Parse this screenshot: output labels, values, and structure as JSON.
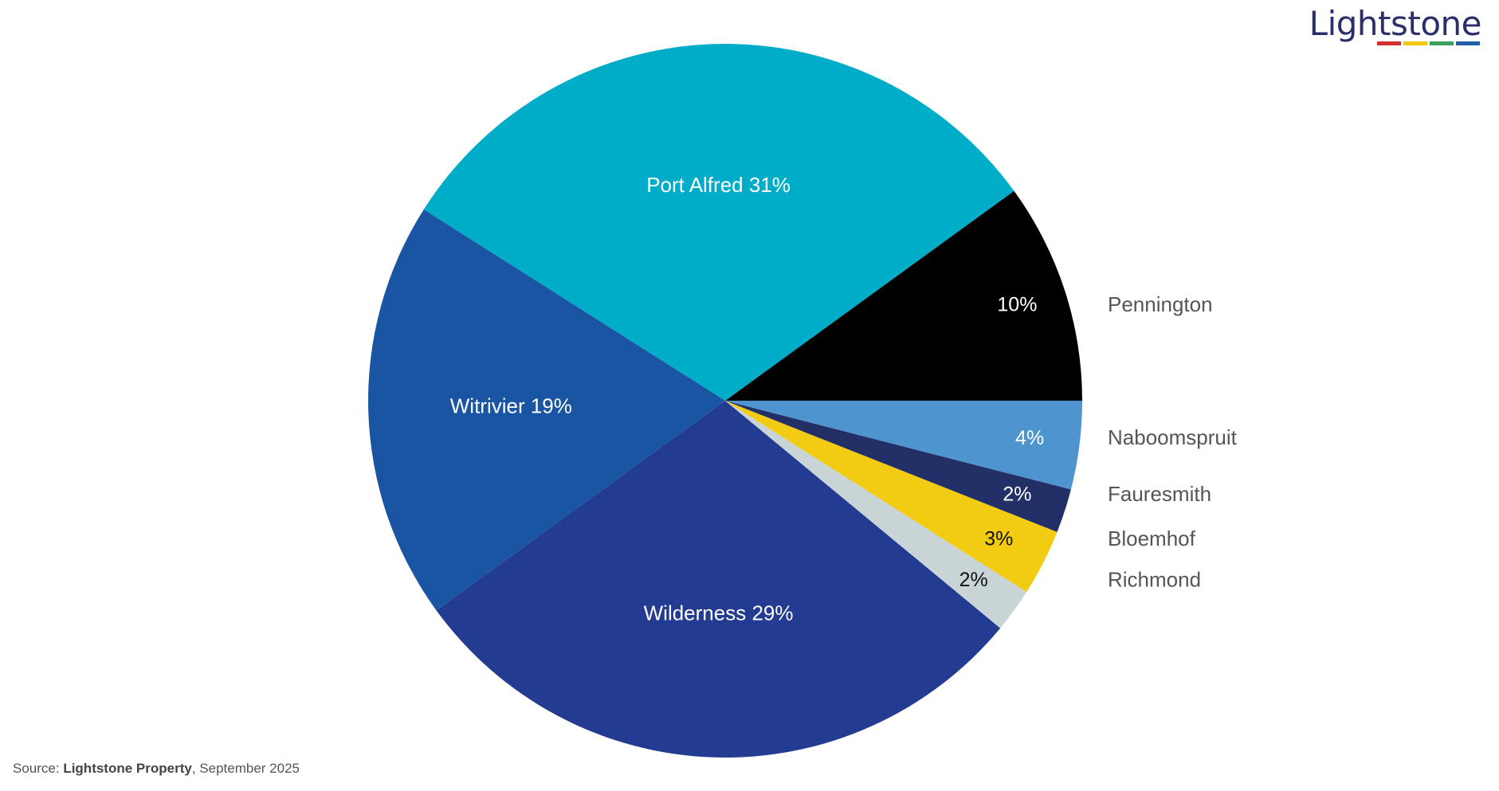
{
  "brand": {
    "logo_text": "Lightstone",
    "underline_colors": [
      "#d32f2f",
      "#f2c811",
      "#3aa35b",
      "#1e5fa8"
    ]
  },
  "source": {
    "prefix": "Source: ",
    "org": "Lightstone Property",
    "suffix": ", September 2025"
  },
  "chart_data": {
    "type": "pie",
    "title": "",
    "start_angle_deg": 0,
    "direction": "counterclockwise",
    "slices": [
      {
        "label": "Pennington",
        "value": 10,
        "display": "10%",
        "color": "#000000",
        "label_color": "#ffffff",
        "label_outside": true
      },
      {
        "label": "Port Alfred",
        "value": 31,
        "display": "31%",
        "color": "#00adc8",
        "label_color": "#ffffff",
        "label_outside": false
      },
      {
        "label": "Witrivier",
        "value": 19,
        "display": "19%",
        "color": "#1a55a3",
        "label_color": "#ffffff",
        "label_outside": false
      },
      {
        "label": "Wilderness",
        "value": 29,
        "display": "29%",
        "color": "#233b90",
        "label_color": "#ffffff",
        "label_outside": false
      },
      {
        "label": "Richmond",
        "value": 2,
        "display": "2%",
        "color": "#c9d4d7",
        "label_color": "#111111",
        "label_outside": true
      },
      {
        "label": "Bloemhof",
        "value": 3,
        "display": "3%",
        "color": "#f2cb13",
        "label_color": "#111111",
        "label_outside": true
      },
      {
        "label": "Fauresmith",
        "value": 2,
        "display": "2%",
        "color": "#233067",
        "label_color": "#ffffff",
        "label_outside": true
      },
      {
        "label": "Naboomspruit",
        "value": 4,
        "display": "4%",
        "color": "#4e95d0",
        "label_color": "#ffffff",
        "label_outside": true
      }
    ],
    "outside_label_color": "#555555"
  }
}
